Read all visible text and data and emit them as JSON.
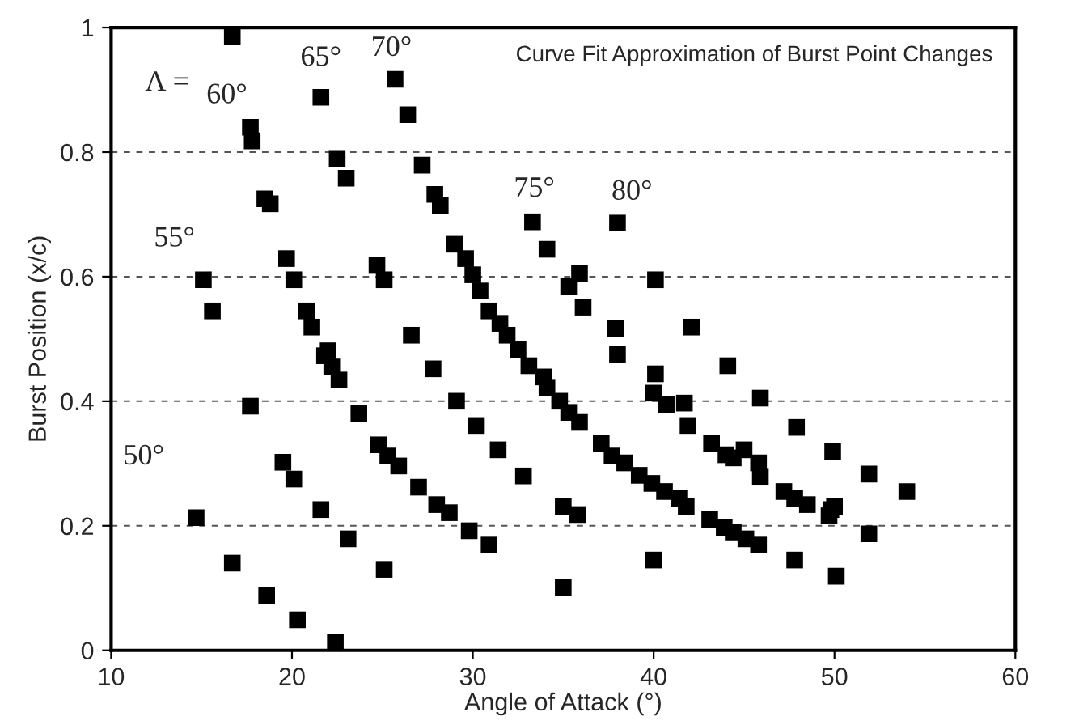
{
  "chart_data": {
    "type": "scatter",
    "title": "Curve Fit Approximation of Burst Point Changes",
    "xlabel": "Angle of Attack (°)",
    "ylabel": "Burst Position (x/c)",
    "xlim": [
      10,
      60
    ],
    "xticks": [
      10,
      20,
      30,
      40,
      50,
      60
    ],
    "ylim": [
      0,
      1
    ],
    "yticks": [
      0,
      0.2,
      0.4,
      0.6,
      0.8,
      1
    ],
    "grid": "y",
    "legend": false,
    "marker": "square",
    "series": [
      {
        "color": "#000000",
        "x": [
          16.7,
          21.6,
          17.7,
          17.8,
          18.5,
          18.8,
          22.5,
          23.0,
          25.7,
          26.4,
          27.2,
          27.9,
          28.2,
          15.1,
          15.6,
          19.7,
          20.1,
          20.8,
          21.1,
          24.7,
          25.1,
          26.6,
          22.0,
          21.8,
          22.2,
          22.6,
          23.7,
          24.8,
          25.3,
          25.9,
          27.0,
          28.0,
          28.7,
          29.8,
          30.9,
          27.8,
          29.1,
          30.2,
          31.4,
          32.8,
          17.7,
          19.5,
          20.1,
          14.7,
          21.6,
          23.1,
          16.7,
          25.1,
          18.6,
          20.3,
          22.4,
          33.3,
          34.1,
          35.9,
          35.3,
          36.1,
          38.0,
          40.1,
          37.9,
          38.0,
          40.1,
          42.1,
          44.1,
          29.0,
          29.6,
          30.0,
          30.4,
          30.9,
          31.5,
          31.9,
          32.5,
          33.1,
          33.9,
          34.1,
          34.8,
          35.3,
          35.9,
          37.1,
          37.7,
          38.4,
          39.2,
          39.9,
          40.6,
          41.4,
          41.8,
          43.1,
          43.9,
          44.4,
          45.1,
          45.8,
          40.0,
          40.7,
          41.7,
          41.9,
          43.2,
          44.0,
          44.4,
          45.0,
          45.8,
          45.9,
          47.2,
          47.8,
          48.5,
          49.8,
          50.0,
          49.7,
          45.9,
          47.9,
          49.9,
          51.9,
          54.0,
          51.9,
          47.8,
          50.1,
          40.0,
          35.0,
          35.0,
          35.8
        ],
        "values": [
          0.985,
          0.888,
          0.84,
          0.818,
          0.725,
          0.717,
          0.79,
          0.758,
          0.917,
          0.86,
          0.779,
          0.732,
          0.714,
          0.595,
          0.545,
          0.629,
          0.595,
          0.545,
          0.519,
          0.618,
          0.595,
          0.506,
          0.481,
          0.473,
          0.455,
          0.434,
          0.38,
          0.33,
          0.312,
          0.296,
          0.262,
          0.234,
          0.221,
          0.192,
          0.169,
          0.452,
          0.4,
          0.361,
          0.322,
          0.28,
          0.392,
          0.302,
          0.275,
          0.213,
          0.226,
          0.179,
          0.14,
          0.13,
          0.088,
          0.049,
          0.013,
          0.688,
          0.644,
          0.605,
          0.584,
          0.551,
          0.686,
          0.595,
          0.517,
          0.475,
          0.444,
          0.519,
          0.457,
          0.652,
          0.629,
          0.603,
          0.577,
          0.545,
          0.525,
          0.506,
          0.483,
          0.457,
          0.439,
          0.421,
          0.4,
          0.382,
          0.366,
          0.332,
          0.312,
          0.301,
          0.281,
          0.268,
          0.255,
          0.244,
          0.231,
          0.21,
          0.197,
          0.19,
          0.179,
          0.169,
          0.413,
          0.395,
          0.397,
          0.361,
          0.332,
          0.314,
          0.309,
          0.322,
          0.301,
          0.278,
          0.255,
          0.244,
          0.234,
          0.226,
          0.231,
          0.216,
          0.405,
          0.358,
          0.319,
          0.283,
          0.255,
          0.187,
          0.145,
          0.119,
          0.145,
          0.101,
          0.231,
          0.218
        ]
      }
    ],
    "annotations": [
      "Λ =",
      "60°",
      "65°",
      "70°",
      "75°",
      "80°",
      "55°",
      "50°"
    ]
  }
}
